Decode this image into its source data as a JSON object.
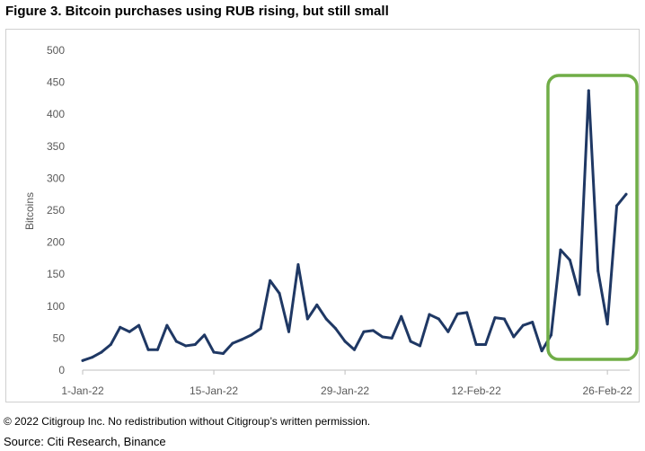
{
  "title": "Figure 3. Bitcoin purchases using RUB rising, but still small",
  "copyright": "© 2022 Citigroup Inc. No redistribution without Citigroup’s written permission.",
  "source": "Source: Citi Research, Binance",
  "colors": {
    "line": "#1f3864",
    "highlight": "#70ad47",
    "axis": "#bfbfbf"
  },
  "chart_data": {
    "type": "line",
    "ylabel": "Bitcoins",
    "ylim": [
      0,
      500
    ],
    "yticks": [
      0,
      50,
      100,
      150,
      200,
      250,
      300,
      350,
      400,
      450,
      500
    ],
    "xtick_labels": [
      "1-Jan-22",
      "15-Jan-22",
      "29-Jan-22",
      "12-Feb-22",
      "26-Feb-22"
    ],
    "grid": false,
    "highlight_range": [
      "21-Feb-22",
      "28-Feb-22"
    ],
    "series": [
      {
        "x": [
          "1-Jan-22",
          "2-Jan-22",
          "3-Jan-22",
          "4-Jan-22",
          "5-Jan-22",
          "6-Jan-22",
          "7-Jan-22",
          "8-Jan-22",
          "9-Jan-22",
          "10-Jan-22",
          "11-Jan-22",
          "12-Jan-22",
          "13-Jan-22",
          "14-Jan-22",
          "15-Jan-22",
          "16-Jan-22",
          "17-Jan-22",
          "18-Jan-22",
          "19-Jan-22",
          "20-Jan-22",
          "21-Jan-22",
          "22-Jan-22",
          "23-Jan-22",
          "24-Jan-22",
          "25-Jan-22",
          "26-Jan-22",
          "27-Jan-22",
          "28-Jan-22",
          "29-Jan-22",
          "30-Jan-22",
          "31-Jan-22",
          "1-Feb-22",
          "2-Feb-22",
          "3-Feb-22",
          "4-Feb-22",
          "5-Feb-22",
          "6-Feb-22",
          "7-Feb-22",
          "8-Feb-22",
          "9-Feb-22",
          "10-Feb-22",
          "11-Feb-22",
          "12-Feb-22",
          "13-Feb-22",
          "14-Feb-22",
          "15-Feb-22",
          "16-Feb-22",
          "17-Feb-22",
          "18-Feb-22",
          "19-Feb-22",
          "20-Feb-22",
          "21-Feb-22",
          "22-Feb-22",
          "23-Feb-22",
          "24-Feb-22",
          "25-Feb-22",
          "26-Feb-22",
          "27-Feb-22",
          "28-Feb-22"
        ],
        "values": [
          15,
          20,
          28,
          40,
          67,
          60,
          70,
          32,
          32,
          70,
          45,
          38,
          40,
          55,
          28,
          26,
          42,
          48,
          55,
          65,
          140,
          120,
          60,
          165,
          80,
          102,
          80,
          65,
          45,
          32,
          60,
          62,
          52,
          50,
          84,
          45,
          38,
          87,
          80,
          60,
          88,
          90,
          40,
          40,
          82,
          80,
          52,
          70,
          75,
          30,
          55,
          188,
          172,
          118,
          437,
          155,
          72,
          257,
          275
        ]
      }
    ]
  }
}
